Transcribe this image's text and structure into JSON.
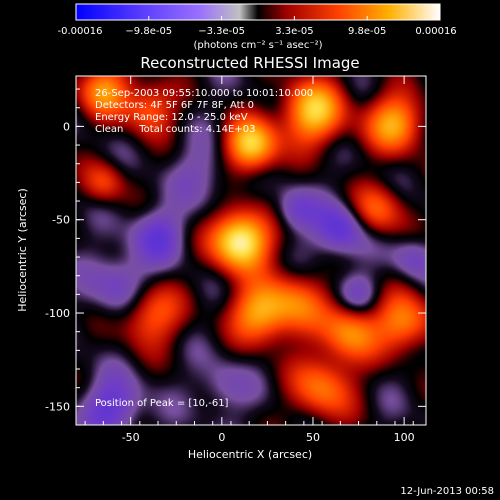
{
  "colorbar": {
    "tick_labels": [
      "-0.00016",
      "−9.8e-05",
      "−3.3e-05",
      "3.3e-05",
      "9.8e-05",
      "0.00016"
    ],
    "unit_label": "(photons cm⁻² s⁻¹ asec⁻²)",
    "colors": [
      "#0000ff",
      "#4a3cff",
      "#8a5bff",
      "#a6a6a6",
      "#000000",
      "#c00000",
      "#ff5a00",
      "#ffb000",
      "#ffffd0",
      "#ffffff"
    ]
  },
  "chart_data": {
    "type": "heatmap",
    "title": "Reconstructed RHESSI Image",
    "xlabel": "Heliocentric X (arcsec)",
    "ylabel": "Heliocentric Y (arcsec)",
    "xlim": [
      -80,
      112
    ],
    "ylim": [
      -160,
      27
    ],
    "x_ticks": [
      -50,
      0,
      50,
      100
    ],
    "y_ticks": [
      0,
      -50,
      -100,
      -150
    ],
    "annotations": [
      "26-Sep-2003 09:55:10.000 to 10:01:10.000",
      "Detectors: 4F 5F 6F 7F 8F, Att 0",
      "Energy Range: 12.0 - 25.0 keV",
      "Clean     Total counts: 4.14E+03"
    ],
    "peak_label": "Position of Peak = [10,-61]",
    "peak": [
      10,
      -61
    ],
    "sources": [
      {
        "x": 10,
        "y": -61,
        "v": 1.0,
        "s": 11
      },
      {
        "x": 16,
        "y": -10,
        "v": 0.8,
        "s": 10
      },
      {
        "x": 50,
        "y": 8,
        "v": 0.75,
        "s": 12
      },
      {
        "x": 95,
        "y": 2,
        "v": 0.65,
        "s": 11
      },
      {
        "x": 85,
        "y": -45,
        "v": 0.45,
        "s": 10
      },
      {
        "x": 20,
        "y": -100,
        "v": 0.6,
        "s": 11
      },
      {
        "x": 40,
        "y": -95,
        "v": 0.45,
        "s": 12
      },
      {
        "x": 70,
        "y": -110,
        "v": 0.55,
        "s": 11
      },
      {
        "x": 100,
        "y": -105,
        "v": 0.55,
        "s": 11
      },
      {
        "x": 55,
        "y": -140,
        "v": 0.5,
        "s": 12
      },
      {
        "x": -40,
        "y": -100,
        "v": 0.5,
        "s": 12
      },
      {
        "x": -65,
        "y": 20,
        "v": 0.55,
        "s": 10
      },
      {
        "x": -40,
        "y": 10,
        "v": 0.45,
        "s": 10
      },
      {
        "x": -65,
        "y": -30,
        "v": 0.35,
        "s": 8
      },
      {
        "x": -35,
        "y": -58,
        "v": -0.35,
        "s": 10
      },
      {
        "x": -55,
        "y": -85,
        "v": -0.35,
        "s": 12
      },
      {
        "x": -60,
        "y": -150,
        "v": -0.4,
        "s": 11
      },
      {
        "x": 65,
        "y": -55,
        "v": -0.45,
        "s": 10
      },
      {
        "x": 40,
        "y": -45,
        "v": -0.3,
        "s": 8
      },
      {
        "x": 75,
        "y": -90,
        "v": -0.25,
        "s": 8
      },
      {
        "x": -10,
        "y": -25,
        "v": -0.2,
        "s": 12
      },
      {
        "x": 105,
        "y": -70,
        "v": -0.25,
        "s": 8
      },
      {
        "x": 0,
        "y": -140,
        "v": -0.2,
        "s": 10
      }
    ]
  },
  "footer": {
    "timestamp": "12-Jun-2013 00:58"
  }
}
